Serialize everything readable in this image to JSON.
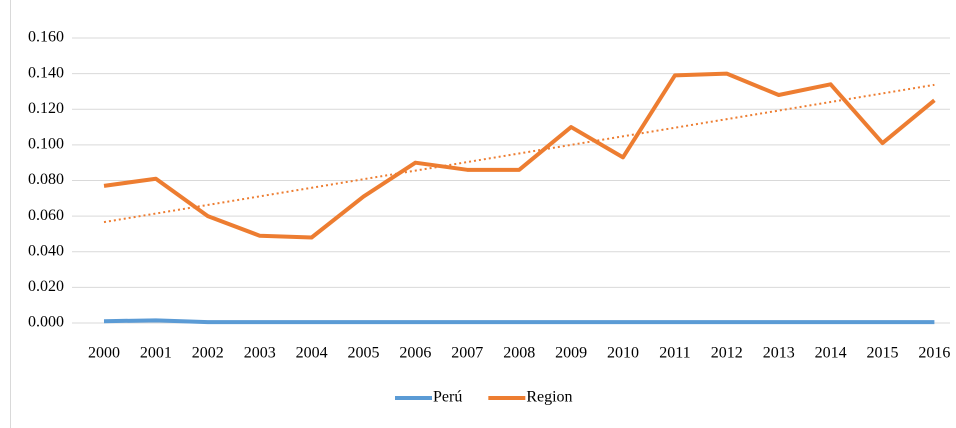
{
  "chart_data": {
    "type": "line",
    "categories": [
      "2000",
      "2001",
      "2002",
      "2003",
      "2004",
      "2005",
      "2006",
      "2007",
      "2008",
      "2009",
      "2010",
      "2011",
      "2012",
      "2013",
      "2014",
      "2015",
      "2016"
    ],
    "series": [
      {
        "name": "Perú",
        "color": "#5b9bd5",
        "values": [
          0.001,
          0.0015,
          0.0005,
          0.0005,
          0.0005,
          0.0005,
          0.0005,
          0.0005,
          0.0005,
          0.0005,
          0.0005,
          0.0005,
          0.0005,
          0.0005,
          0.0005,
          0.0005,
          0.0005
        ]
      },
      {
        "name": "Region",
        "color": "#ed7d31",
        "trendline": true,
        "values": [
          0.077,
          0.081,
          0.06,
          0.049,
          0.048,
          0.071,
          0.09,
          0.086,
          0.086,
          0.11,
          0.093,
          0.139,
          0.14,
          0.128,
          0.134,
          0.101,
          0.125
        ]
      }
    ],
    "ylim": [
      0,
      0.16
    ],
    "yticks": [
      {
        "value": 0,
        "label": "0.000"
      },
      {
        "value": 0.02,
        "label": "0.020"
      },
      {
        "value": 0.04,
        "label": "0.040"
      },
      {
        "value": 0.06,
        "label": "0.060"
      },
      {
        "value": 0.08,
        "label": "0.080"
      },
      {
        "value": 0.1,
        "label": "0.100"
      },
      {
        "value": 0.12,
        "label": "0.120"
      },
      {
        "value": 0.14,
        "label": "0.140"
      },
      {
        "value": 0.16,
        "label": "0.160"
      }
    ],
    "grid": true,
    "legend": "bottom"
  }
}
